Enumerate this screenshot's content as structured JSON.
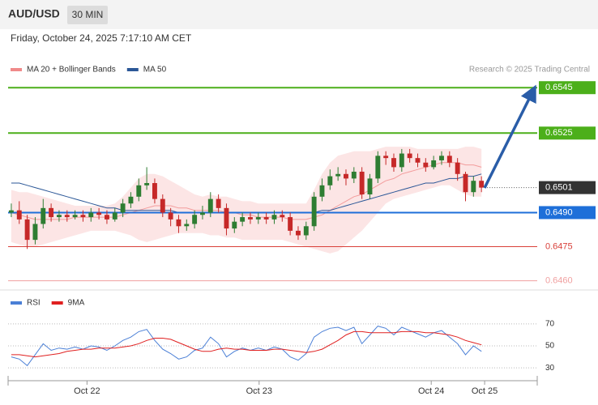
{
  "header": {
    "symbol": "AUD/USD",
    "timeframe": "30 MIN",
    "datetime": "Friday, October 24, 2025 7:17:10 AM CET"
  },
  "chart_data": [
    {
      "type": "candlestick",
      "credit": "Research © 2025 Trading Central",
      "up_color": "#2e7d32",
      "down_color": "#c62828",
      "legend": [
        {
          "name": "MA 20 + Bollinger Bands",
          "color": "#f08a8a"
        },
        {
          "name": "MA 50",
          "color": "#2b5797"
        }
      ],
      "xlim": [
        -0.4,
        66
      ],
      "ylim": [
        0.6457,
        0.6549
      ],
      "xticks": [
        {
          "value": 9.5,
          "label": "Oct 22"
        },
        {
          "value": 31.1,
          "label": "Oct 23"
        },
        {
          "value": 52.7,
          "label": "Oct 24"
        },
        {
          "value": 59.4,
          "label": "Oct 25"
        }
      ],
      "open": [
        0.649,
        0.6491,
        0.6487,
        0.6478,
        0.6485,
        0.6492,
        0.6488,
        0.6489,
        0.6488,
        0.6489,
        0.6488,
        0.649,
        0.6489,
        0.6487,
        0.649,
        0.6494,
        0.6497,
        0.6502,
        0.6503,
        0.6496,
        0.649,
        0.6487,
        0.6484,
        0.6485,
        0.6489,
        0.649,
        0.6496,
        0.6492,
        0.6483,
        0.6486,
        0.6488,
        0.6487,
        0.6488,
        0.6487,
        0.6489,
        0.6488,
        0.6482,
        0.648,
        0.6484,
        0.6497,
        0.6502,
        0.6506,
        0.6507,
        0.6505,
        0.6508,
        0.6498,
        0.6505,
        0.6515,
        0.6514,
        0.651,
        0.6516,
        0.6514,
        0.6512,
        0.651,
        0.6513,
        0.6515,
        0.6512,
        0.6507,
        0.6499,
        0.6504
      ],
      "high": [
        0.6494,
        0.6495,
        0.6489,
        0.6488,
        0.6496,
        0.6494,
        0.6491,
        0.6491,
        0.6491,
        0.6491,
        0.6492,
        0.6492,
        0.6491,
        0.6492,
        0.6496,
        0.6499,
        0.6505,
        0.651,
        0.6505,
        0.6498,
        0.6492,
        0.6489,
        0.6487,
        0.6491,
        0.6493,
        0.6499,
        0.6498,
        0.6494,
        0.6488,
        0.649,
        0.649,
        0.649,
        0.649,
        0.6491,
        0.6491,
        0.649,
        0.6484,
        0.6486,
        0.6499,
        0.6505,
        0.6509,
        0.651,
        0.6509,
        0.651,
        0.651,
        0.6507,
        0.6517,
        0.6517,
        0.6516,
        0.6518,
        0.6518,
        0.6516,
        0.6514,
        0.6515,
        0.6517,
        0.6517,
        0.6514,
        0.6508,
        0.6506,
        0.6506
      ],
      "low": [
        0.6488,
        0.6485,
        0.6474,
        0.6476,
        0.6483,
        0.6486,
        0.6486,
        0.6486,
        0.6487,
        0.6486,
        0.6486,
        0.6487,
        0.6485,
        0.6486,
        0.6488,
        0.6492,
        0.6495,
        0.65,
        0.6494,
        0.6488,
        0.6484,
        0.6481,
        0.6482,
        0.6483,
        0.6487,
        0.6488,
        0.649,
        0.648,
        0.6481,
        0.6484,
        0.6485,
        0.6485,
        0.6485,
        0.6485,
        0.6486,
        0.648,
        0.6478,
        0.6478,
        0.6482,
        0.6495,
        0.65,
        0.6504,
        0.6502,
        0.6503,
        0.6496,
        0.6496,
        0.6503,
        0.6511,
        0.6508,
        0.6508,
        0.6512,
        0.651,
        0.6508,
        0.6509,
        0.6511,
        0.651,
        0.6504,
        0.6495,
        0.6497,
        0.6499
      ],
      "close": [
        0.6491,
        0.6487,
        0.6478,
        0.6485,
        0.6492,
        0.6488,
        0.6489,
        0.6488,
        0.6489,
        0.6488,
        0.649,
        0.6489,
        0.6487,
        0.649,
        0.6494,
        0.6497,
        0.6502,
        0.6503,
        0.6496,
        0.649,
        0.6487,
        0.6484,
        0.6485,
        0.6489,
        0.649,
        0.6496,
        0.6492,
        0.6483,
        0.6486,
        0.6488,
        0.6487,
        0.6488,
        0.6487,
        0.6489,
        0.6488,
        0.6482,
        0.648,
        0.6484,
        0.6497,
        0.6502,
        0.6506,
        0.6507,
        0.6505,
        0.6508,
        0.6498,
        0.6505,
        0.6515,
        0.6514,
        0.651,
        0.6516,
        0.6514,
        0.6512,
        0.651,
        0.6513,
        0.6515,
        0.6512,
        0.6507,
        0.6499,
        0.6504,
        0.6501
      ],
      "ma20": [
        0.649,
        0.6489,
        0.6488,
        0.6487,
        0.6487,
        0.6487,
        0.6487,
        0.6487,
        0.6488,
        0.6488,
        0.6488,
        0.6488,
        0.6488,
        0.6488,
        0.6489,
        0.649,
        0.6491,
        0.6492,
        0.6493,
        0.6493,
        0.6493,
        0.6492,
        0.6492,
        0.6491,
        0.6491,
        0.6491,
        0.6491,
        0.649,
        0.649,
        0.6489,
        0.6489,
        0.6488,
        0.6488,
        0.6488,
        0.6488,
        0.6487,
        0.6487,
        0.6487,
        0.6488,
        0.6489,
        0.6491,
        0.6493,
        0.6495,
        0.6497,
        0.6498,
        0.65,
        0.6502,
        0.6504,
        0.6505,
        0.6507,
        0.6508,
        0.6509,
        0.651,
        0.6511,
        0.6512,
        0.6512,
        0.6512,
        0.6511,
        0.6511,
        0.651
      ],
      "bb_upper": [
        0.65,
        0.6499,
        0.6499,
        0.6498,
        0.6497,
        0.6496,
        0.6495,
        0.6494,
        0.6493,
        0.6493,
        0.6493,
        0.6493,
        0.6493,
        0.6494,
        0.6497,
        0.6501,
        0.6505,
        0.6507,
        0.6507,
        0.6506,
        0.6504,
        0.6502,
        0.65,
        0.6498,
        0.6497,
        0.6498,
        0.6497,
        0.6497,
        0.6496,
        0.6495,
        0.6495,
        0.6494,
        0.6494,
        0.6494,
        0.6494,
        0.6494,
        0.6494,
        0.6494,
        0.65,
        0.6507,
        0.6512,
        0.6515,
        0.6516,
        0.6517,
        0.6517,
        0.6517,
        0.6518,
        0.6519,
        0.6519,
        0.6519,
        0.6519,
        0.6518,
        0.6518,
        0.6518,
        0.6518,
        0.6518,
        0.6518,
        0.6519,
        0.6519,
        0.6518
      ],
      "bb_lower": [
        0.6477,
        0.6476,
        0.6475,
        0.6475,
        0.6476,
        0.6477,
        0.6478,
        0.6479,
        0.648,
        0.6481,
        0.6482,
        0.6482,
        0.6482,
        0.6482,
        0.6481,
        0.648,
        0.6478,
        0.6477,
        0.6478,
        0.6479,
        0.648,
        0.6481,
        0.6481,
        0.6481,
        0.6481,
        0.648,
        0.648,
        0.6479,
        0.6479,
        0.6478,
        0.6478,
        0.6478,
        0.6478,
        0.6478,
        0.6478,
        0.6477,
        0.6476,
        0.6475,
        0.6474,
        0.6473,
        0.6472,
        0.6473,
        0.6476,
        0.6479,
        0.6482,
        0.6486,
        0.649,
        0.6494,
        0.6496,
        0.6497,
        0.6498,
        0.6499,
        0.65,
        0.6501,
        0.6502,
        0.6502,
        0.65,
        0.6498,
        0.6497,
        0.6497
      ],
      "ma50": [
        0.6503,
        0.6503,
        0.6502,
        0.6501,
        0.65,
        0.6499,
        0.6498,
        0.6497,
        0.6496,
        0.6495,
        0.6494,
        0.6493,
        0.6492,
        0.6492,
        0.6491,
        0.6491,
        0.6491,
        0.6491,
        0.6491,
        0.6491,
        0.6491,
        0.649,
        0.649,
        0.649,
        0.649,
        0.649,
        0.649,
        0.649,
        0.649,
        0.649,
        0.649,
        0.649,
        0.649,
        0.649,
        0.649,
        0.649,
        0.649,
        0.649,
        0.649,
        0.6491,
        0.6491,
        0.6492,
        0.6493,
        0.6494,
        0.6495,
        0.6496,
        0.6497,
        0.6498,
        0.6499,
        0.65,
        0.6501,
        0.6502,
        0.6503,
        0.6503,
        0.6504,
        0.6505,
        0.6505,
        0.6506,
        0.6506,
        0.6507
      ],
      "levels": [
        {
          "value": 0.6545,
          "label": "0.6545",
          "color": "#4caf1a",
          "boxed": true
        },
        {
          "value": 0.6525,
          "label": "0.6525",
          "color": "#4caf1a",
          "boxed": true
        },
        {
          "value": 0.649,
          "label": "0.6490",
          "color": "#1e6fd9",
          "boxed": true
        },
        {
          "value": 0.6475,
          "label": "0.6475",
          "color": "#d9403a",
          "boxed": false
        },
        {
          "value": 0.646,
          "label": "0.6460",
          "color": "#f0a0a0",
          "boxed": false
        }
      ],
      "last_price": {
        "value": 0.6501,
        "label": "0.6501",
        "color": "#333333"
      }
    },
    {
      "type": "line",
      "ylim": [
        22,
        81
      ],
      "yticks": [
        30,
        50,
        70
      ],
      "series": [
        {
          "name": "RSI",
          "color": "#4a7fd6",
          "values": [
            40,
            38,
            32,
            42,
            52,
            46,
            48,
            47,
            49,
            47,
            50,
            49,
            46,
            50,
            55,
            58,
            63,
            65,
            55,
            47,
            43,
            38,
            40,
            46,
            48,
            58,
            52,
            40,
            45,
            48,
            46,
            48,
            46,
            49,
            47,
            40,
            37,
            43,
            58,
            63,
            66,
            67,
            64,
            67,
            52,
            60,
            68,
            66,
            60,
            67,
            64,
            61,
            58,
            62,
            64,
            58,
            52,
            42,
            50,
            45
          ]
        },
        {
          "name": "9MA",
          "color": "#e02020",
          "values": [
            42,
            42,
            41,
            40,
            41,
            42,
            43,
            45,
            46,
            47,
            47,
            48,
            48,
            48,
            49,
            50,
            52,
            55,
            57,
            57,
            56,
            53,
            50,
            47,
            45,
            45,
            47,
            48,
            47,
            47,
            46,
            46,
            46,
            47,
            47,
            46,
            45,
            44,
            45,
            47,
            51,
            55,
            60,
            63,
            63,
            62,
            62,
            62,
            62,
            63,
            63,
            63,
            62,
            62,
            61,
            60,
            58,
            55,
            53,
            51
          ]
        }
      ]
    }
  ]
}
